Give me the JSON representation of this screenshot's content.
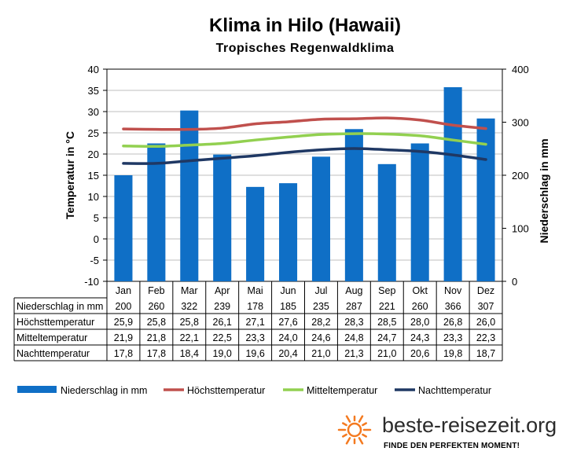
{
  "chart_data": {
    "type": "bar",
    "title": "Klima in Hilo (Hawaii)",
    "subtitle": "Tropisches Regenwaldklima",
    "categories": [
      "Jan",
      "Feb",
      "Mar",
      "Apr",
      "Mai",
      "Jun",
      "Jul",
      "Aug",
      "Sep",
      "Okt",
      "Nov",
      "Dez"
    ],
    "ylabel_left": "Temperatur in °C",
    "ylabel_right": "Niederschlag in mm",
    "ylim_left": [
      -10,
      40
    ],
    "ylim_right": [
      0,
      400
    ],
    "yticks_left": [
      "40",
      "35",
      "30",
      "25",
      "20",
      "15",
      "10",
      "5",
      "0",
      "-5",
      "-10"
    ],
    "yticks_right": [
      "400",
      "300",
      "200",
      "100",
      "0"
    ],
    "grid": true,
    "legend_position": "bottom",
    "series": [
      {
        "name": "Niederschlag in mm",
        "type": "bar",
        "axis": "right",
        "color": "#0f6fc6",
        "values": [
          200,
          260,
          322,
          239,
          178,
          185,
          235,
          287,
          221,
          260,
          366,
          307
        ],
        "labels": [
          "200",
          "260",
          "322",
          "239",
          "178",
          "185",
          "235",
          "287",
          "221",
          "260",
          "366",
          "307"
        ]
      },
      {
        "name": "Höchsttemperatur",
        "type": "line",
        "axis": "left",
        "color": "#c0504d",
        "values": [
          25.9,
          25.8,
          25.8,
          26.1,
          27.1,
          27.6,
          28.2,
          28.3,
          28.5,
          28.0,
          26.8,
          26.0
        ],
        "labels": [
          "25,9",
          "25,8",
          "25,8",
          "26,1",
          "27,1",
          "27,6",
          "28,2",
          "28,3",
          "28,5",
          "28,0",
          "26,8",
          "26,0"
        ]
      },
      {
        "name": "Mitteltemperatur",
        "type": "line",
        "axis": "left",
        "color": "#92d050",
        "values": [
          21.9,
          21.8,
          22.1,
          22.5,
          23.3,
          24.0,
          24.6,
          24.8,
          24.7,
          24.3,
          23.3,
          22.3
        ],
        "labels": [
          "21,9",
          "21,8",
          "22,1",
          "22,5",
          "23,3",
          "24,0",
          "24,6",
          "24,8",
          "24,7",
          "24,3",
          "23,3",
          "22,3"
        ]
      },
      {
        "name": "Nachttemperatur",
        "type": "line",
        "axis": "left",
        "color": "#1f3864",
        "values": [
          17.8,
          17.8,
          18.4,
          19.0,
          19.6,
          20.4,
          21.0,
          21.3,
          21.0,
          20.6,
          19.8,
          18.7
        ],
        "labels": [
          "17,8",
          "17,8",
          "18,4",
          "19,0",
          "19,6",
          "20,4",
          "21,0",
          "21,3",
          "21,0",
          "20,6",
          "19,8",
          "18,7"
        ]
      }
    ]
  },
  "logo": {
    "text": "beste-reisezeit.org",
    "tagline": "FINDE DEN PERFEKTEN MOMENT!",
    "sun_color": "#f47a20"
  }
}
